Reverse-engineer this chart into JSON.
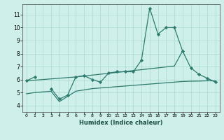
{
  "xlabel": "Humidex (Indice chaleur)",
  "x_values": [
    0,
    1,
    2,
    3,
    4,
    5,
    6,
    7,
    8,
    9,
    10,
    11,
    12,
    13,
    14,
    15,
    16,
    17,
    18,
    19,
    20,
    21,
    22,
    23
  ],
  "line_main_y": [
    5.9,
    6.2,
    null,
    5.3,
    4.5,
    4.8,
    6.2,
    6.3,
    6.0,
    5.8,
    6.5,
    6.6,
    6.6,
    6.6,
    7.5,
    11.5,
    9.5,
    10.0,
    10.0,
    8.2,
    6.9,
    6.4,
    6.1,
    5.8
  ],
  "line_diag_y": [
    5.9,
    5.95,
    6.0,
    6.05,
    6.1,
    6.15,
    6.2,
    6.27,
    6.34,
    6.41,
    6.48,
    6.55,
    6.62,
    6.69,
    6.76,
    6.83,
    6.9,
    6.97,
    7.04,
    8.2,
    null,
    null,
    null,
    null
  ],
  "line_low_y": [
    4.9,
    5.0,
    5.05,
    5.1,
    4.3,
    4.7,
    5.1,
    5.2,
    5.3,
    5.35,
    5.4,
    5.45,
    5.5,
    5.55,
    5.6,
    5.65,
    5.7,
    5.75,
    5.8,
    5.85,
    5.87,
    5.88,
    5.9,
    5.9
  ],
  "color": "#2d7a6e",
  "bg_color": "#cff0ea",
  "grid_color": "#a8d8d0",
  "ylim": [
    3.5,
    11.8
  ],
  "xlim": [
    -0.5,
    23.5
  ],
  "yticks": [
    4,
    5,
    6,
    7,
    8,
    9,
    10,
    11
  ],
  "xtick_labels": [
    "0",
    "1",
    "2",
    "3",
    "4",
    "5",
    "6",
    "7",
    "8",
    "9",
    "10",
    "11",
    "12",
    "13",
    "14",
    "15",
    "16",
    "17",
    "18",
    "19",
    "20",
    "21",
    "22",
    "23"
  ]
}
